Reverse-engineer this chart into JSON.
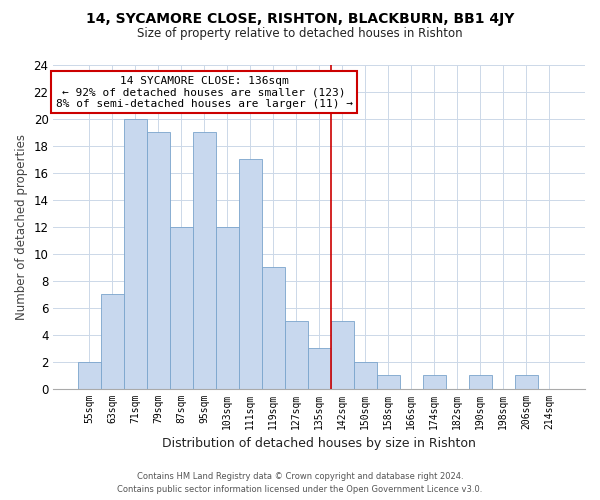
{
  "title": "14, SYCAMORE CLOSE, RISHTON, BLACKBURN, BB1 4JY",
  "subtitle": "Size of property relative to detached houses in Rishton",
  "xlabel": "Distribution of detached houses by size in Rishton",
  "ylabel": "Number of detached properties",
  "bin_labels": [
    "55sqm",
    "63sqm",
    "71sqm",
    "79sqm",
    "87sqm",
    "95sqm",
    "103sqm",
    "111sqm",
    "119sqm",
    "127sqm",
    "135sqm",
    "142sqm",
    "150sqm",
    "158sqm",
    "166sqm",
    "174sqm",
    "182sqm",
    "190sqm",
    "198sqm",
    "206sqm",
    "214sqm"
  ],
  "bar_values": [
    2,
    7,
    20,
    19,
    12,
    19,
    12,
    17,
    9,
    5,
    3,
    5,
    2,
    1,
    0,
    1,
    0,
    1,
    0,
    1,
    0
  ],
  "bar_color": "#c8d8ee",
  "bar_edge_color": "#7aa4cc",
  "bar_width": 1.0,
  "ylim": [
    0,
    24
  ],
  "yticks": [
    0,
    2,
    4,
    6,
    8,
    10,
    12,
    14,
    16,
    18,
    20,
    22,
    24
  ],
  "vline_x": 10.5,
  "vline_color": "#cc0000",
  "annotation_title": "14 SYCAMORE CLOSE: 136sqm",
  "annotation_line1": "← 92% of detached houses are smaller (123)",
  "annotation_line2": "8% of semi-detached houses are larger (11) →",
  "annotation_box_color": "#ffffff",
  "annotation_box_edge": "#cc0000",
  "footer1": "Contains HM Land Registry data © Crown copyright and database right 2024.",
  "footer2": "Contains public sector information licensed under the Open Government Licence v3.0.",
  "background_color": "#ffffff",
  "grid_color": "#ccd8e8"
}
